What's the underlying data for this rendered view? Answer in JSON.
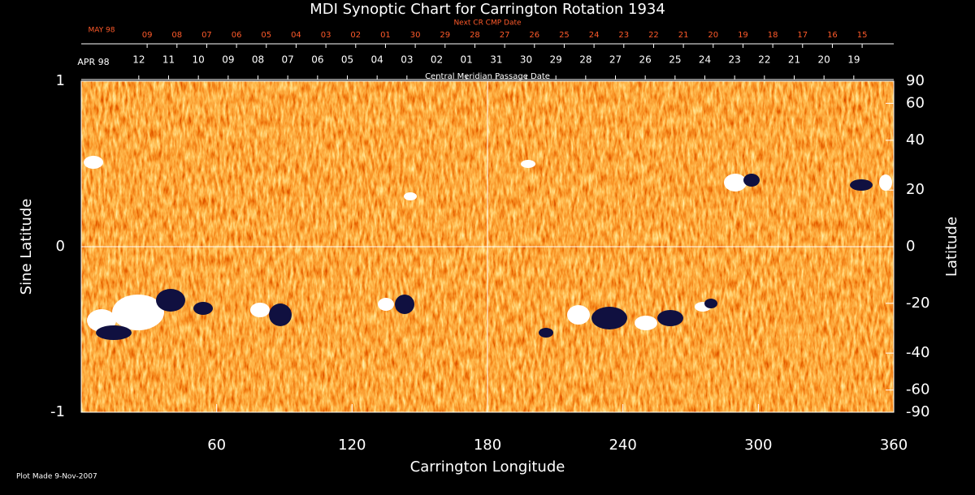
{
  "chart_data": {
    "type": "synoptic-map",
    "title": "MDI Synoptic Chart for Carrington Rotation 1934",
    "xlabel": "Carrington Longitude",
    "ylabel": "Sine Latitude",
    "y2label": "Latitude",
    "xlim": [
      0,
      360
    ],
    "xticks": [
      60,
      120,
      180,
      240,
      300,
      360
    ],
    "ylim": [
      -1,
      1
    ],
    "yticks": [
      -1,
      0,
      1
    ],
    "y2lim": [
      -90,
      90
    ],
    "y2scale": "sine",
    "y2ticks": [
      90,
      60,
      40,
      20,
      0,
      -20,
      -40,
      -60,
      -90
    ],
    "date_axis": {
      "label": "Central Meridian Passage Date",
      "month": "APR 98",
      "color": "#ffffff",
      "dates": [
        "12",
        "11",
        "10",
        "09",
        "08",
        "07",
        "06",
        "05",
        "04",
        "03",
        "02",
        "01",
        "31",
        "30",
        "29",
        "28",
        "27",
        "26",
        "25",
        "24",
        "23",
        "22",
        "21",
        "20",
        "19"
      ],
      "longitudes": [
        25.5,
        38.7,
        51.9,
        65.1,
        78.3,
        91.5,
        104.7,
        117.9,
        131.1,
        144.3,
        157.5,
        170.7,
        183.9,
        197.1,
        210.3,
        223.5,
        236.7,
        249.9,
        263.1,
        276.3,
        289.5,
        302.7,
        315.9,
        329.1,
        342.3
      ]
    },
    "next_date_axis": {
      "label": "Next CR CMP Date",
      "month": "MAY 98",
      "color": "#ff5a2a",
      "dates": [
        "09",
        "08",
        "07",
        "06",
        "05",
        "04",
        "03",
        "02",
        "01",
        "30",
        "29",
        "28",
        "27",
        "26",
        "25",
        "24",
        "23",
        "22",
        "21",
        "20",
        "19",
        "18",
        "17",
        "16",
        "15"
      ],
      "longitudes": [
        29.2,
        42.4,
        55.6,
        68.8,
        82,
        95.2,
        108.4,
        121.6,
        134.8,
        148,
        161.2,
        174.4,
        187.6,
        200.8,
        214,
        227.2,
        240.4,
        253.6,
        266.8,
        280,
        293.2,
        306.4,
        319.6,
        332.8,
        346
      ]
    },
    "footnote": "Plot Made  9-Nov-2007"
  }
}
